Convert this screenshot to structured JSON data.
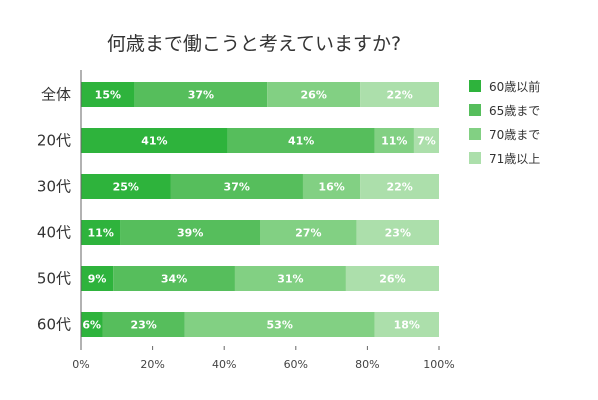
{
  "chart_data": {
    "type": "bar",
    "orientation": "horizontal",
    "stacked": true,
    "title": "何歳まで働こうと考えていますか?",
    "categories": [
      "全体",
      "20代",
      "30代",
      "40代",
      "50代",
      "60代"
    ],
    "series": [
      {
        "name": "60歳以前",
        "color": "#2eb33c",
        "values": [
          15,
          41,
          25,
          11,
          9,
          6
        ]
      },
      {
        "name": "65歳まで",
        "color": "#56be5c",
        "values": [
          37,
          41,
          37,
          39,
          34,
          23
        ]
      },
      {
        "name": "70歳まで",
        "color": "#82d083",
        "values": [
          26,
          11,
          16,
          27,
          31,
          53
        ]
      },
      {
        "name": "71歳以上",
        "color": "#acdfab",
        "values": [
          22,
          7,
          22,
          23,
          26,
          18
        ]
      }
    ],
    "xlim": [
      0,
      100
    ],
    "xticks": [
      "0%",
      "20%",
      "40%",
      "60%",
      "80%",
      "100%"
    ],
    "legend_position": "right",
    "grid": false
  }
}
